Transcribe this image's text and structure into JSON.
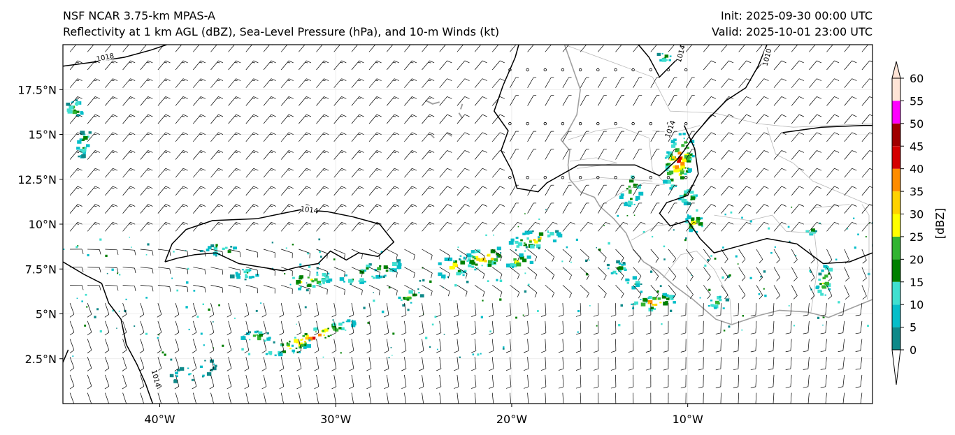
{
  "titles": {
    "left_line1": "NSF NCAR 3.75-km MPAS-A",
    "left_line2": "Reflectivity at 1 km AGL (dBZ), Sea-Level Pressure (hPa), and 10-m Winds (kt)",
    "right_line1": "Init: 2025-09-30 00:00 UTC",
    "right_line2": "Valid: 2025-10-01 23:00 UTC"
  },
  "map": {
    "lon_range": [
      -45.5,
      0.5
    ],
    "lat_range": [
      0,
      20
    ],
    "lon_ticks": [
      {
        "value": -40,
        "label": "40°W"
      },
      {
        "value": -30,
        "label": "30°W"
      },
      {
        "value": -20,
        "label": "20°W"
      },
      {
        "value": -10,
        "label": "10°W"
      }
    ],
    "lat_ticks": [
      {
        "value": 2.5,
        "label": "2.5°N"
      },
      {
        "value": 5,
        "label": "5°N"
      },
      {
        "value": 7.5,
        "label": "7.5°N"
      },
      {
        "value": 10,
        "label": "10°N"
      },
      {
        "value": 12.5,
        "label": "12.5°N"
      },
      {
        "value": 15,
        "label": "15°N"
      },
      {
        "value": 17.5,
        "label": "17.5°N"
      }
    ],
    "isobar_labels": [
      {
        "text": "1018",
        "lon": -43.1,
        "lat": 19.3,
        "angle": -12
      },
      {
        "text": "1014",
        "lon": -31.5,
        "lat": 10.8,
        "angle": 8
      },
      {
        "text": "1014",
        "lon": -10.4,
        "lat": 19.5,
        "angle": -75
      },
      {
        "text": "1010",
        "lon": -5.5,
        "lat": 19.3,
        "angle": -75
      },
      {
        "text": "1014",
        "lon": -11.0,
        "lat": 15.3,
        "angle": -70
      },
      {
        "text": "1014",
        "lon": -40.2,
        "lat": 1.4,
        "angle": 75
      }
    ],
    "isobars": [
      [
        [
          -45.5,
          18.8
        ],
        [
          -44,
          19.0
        ],
        [
          -42,
          19.3
        ],
        [
          -40.5,
          19.7
        ],
        [
          -39.6,
          20
        ]
      ],
      [
        [
          -39.7,
          7.9
        ],
        [
          -39.3,
          8.9
        ],
        [
          -38.5,
          9.7
        ],
        [
          -37,
          10.2
        ],
        [
          -34.5,
          10.3
        ],
        [
          -32,
          10.8
        ],
        [
          -30.5,
          10.7
        ],
        [
          -29,
          10.4
        ],
        [
          -27.5,
          10.0
        ],
        [
          -26.7,
          9.0
        ],
        [
          -27.6,
          8.2
        ],
        [
          -28.7,
          8.4
        ],
        [
          -29.4,
          8.0
        ],
        [
          -30.3,
          8.5
        ],
        [
          -31.0,
          7.8
        ],
        [
          -32.2,
          7.6
        ],
        [
          -33.0,
          7.4
        ],
        [
          -34.2,
          7.6
        ],
        [
          -35.5,
          7.8
        ],
        [
          -36.8,
          8.4
        ],
        [
          -38.0,
          8.3
        ],
        [
          -39.0,
          8.1
        ],
        [
          -39.7,
          7.9
        ]
      ],
      [
        [
          -45.5,
          7.9
        ],
        [
          -44.3,
          7.2
        ],
        [
          -43.3,
          6.7
        ],
        [
          -42.9,
          5.6
        ],
        [
          -42.2,
          4.7
        ],
        [
          -41.9,
          3.3
        ],
        [
          -41.3,
          2.2
        ],
        [
          -40.8,
          1.1
        ],
        [
          -40.4,
          0
        ]
      ],
      [
        [
          -5.5,
          20
        ],
        [
          -6.0,
          18.8
        ],
        [
          -6.7,
          17.6
        ],
        [
          -7.8,
          16.9
        ],
        [
          -8.8,
          15.9
        ],
        [
          -9.6,
          15.0
        ],
        [
          -10.2,
          14.1
        ],
        [
          -10.6,
          13.6
        ],
        [
          -11.6,
          12.7
        ],
        [
          -13,
          13.3
        ],
        [
          -14.6,
          13.3
        ],
        [
          -16.2,
          13.3
        ],
        [
          -18,
          12.3
        ],
        [
          -18.5,
          11.8
        ],
        [
          -19.7,
          12.0
        ],
        [
          -20.0,
          13.0
        ],
        [
          -20.6,
          14.1
        ],
        [
          -20.2,
          15.2
        ],
        [
          -21.0,
          16.3
        ],
        [
          -20.5,
          17.7
        ],
        [
          -19.8,
          19.3
        ],
        [
          -19.6,
          20
        ]
      ],
      [
        [
          -45.5,
          2.3
        ],
        [
          -45.2,
          3.0
        ]
      ],
      [
        [
          -10.4,
          20
        ],
        [
          -10.6,
          19.2
        ],
        [
          -11.6,
          18.2
        ],
        [
          -12.2,
          19.3
        ],
        [
          -12.8,
          20
        ]
      ],
      [
        [
          -10.2,
          15.5
        ],
        [
          -9.6,
          14.2
        ],
        [
          -9.4,
          12.8
        ],
        [
          -10.0,
          11.6
        ],
        [
          -11.2,
          11.2
        ],
        [
          -11.6,
          10.6
        ],
        [
          -11.0,
          9.9
        ],
        [
          -10.0,
          10.2
        ],
        [
          -9.3,
          9.2
        ],
        [
          -8.5,
          8.4
        ],
        [
          -7,
          8.8
        ],
        [
          -5.5,
          9.2
        ],
        [
          -3.8,
          8.9
        ],
        [
          -2.3,
          7.8
        ],
        [
          -0.8,
          7.9
        ],
        [
          0.5,
          8.4
        ]
      ],
      [
        [
          -4.6,
          15.1
        ],
        [
          -2.4,
          15.4
        ],
        [
          0,
          15.5
        ],
        [
          0.5,
          15.5
        ]
      ]
    ],
    "coastline": [
      [
        [
          -17.0,
          20
        ],
        [
          -16.6,
          18.9
        ],
        [
          -16.1,
          17.5
        ],
        [
          -16.3,
          16.1
        ],
        [
          -16.8,
          15.2
        ],
        [
          -17.2,
          14.7
        ],
        [
          -16.7,
          14.1
        ],
        [
          -16.8,
          13.3
        ],
        [
          -16.7,
          12.5
        ],
        [
          -16.1,
          11.8
        ],
        [
          -15.3,
          11.5
        ],
        [
          -15.0,
          11.0
        ],
        [
          -14.2,
          10.3
        ],
        [
          -13.5,
          9.5
        ],
        [
          -13.1,
          8.6
        ],
        [
          -12.5,
          7.9
        ],
        [
          -11.7,
          7.4
        ],
        [
          -10.8,
          6.6
        ],
        [
          -9.7,
          5.8
        ],
        [
          -8.4,
          4.7
        ],
        [
          -7.5,
          4.4
        ],
        [
          -6.0,
          4.9
        ],
        [
          -4.8,
          5.2
        ],
        [
          -3.2,
          5.1
        ],
        [
          -2.0,
          4.8
        ],
        [
          -1.0,
          5.2
        ],
        [
          0.5,
          5.8
        ]
      ]
    ],
    "islands": [
      [
        [
          -24.9,
          16.9
        ],
        [
          -24.5,
          16.7
        ],
        [
          -24.1,
          16.8
        ]
      ],
      [
        [
          -23.0,
          16.2
        ],
        [
          -22.8,
          15.9
        ]
      ],
      [
        [
          -23.7,
          15.1
        ],
        [
          -23.4,
          14.9
        ]
      ],
      [
        [
          -24.6,
          15.0
        ],
        [
          -24.4,
          14.8
        ]
      ],
      [
        [
          -22.8,
          16.7
        ],
        [
          -22.9,
          16.4
        ]
      ]
    ],
    "borders": [
      [
        [
          -17.0,
          20
        ],
        [
          -12.0,
          18.2
        ],
        [
          -11.0,
          16.3
        ],
        [
          -8.5,
          16.2
        ],
        [
          -6,
          15.6
        ],
        [
          -4,
          15.4
        ],
        [
          0.5,
          15.6
        ]
      ],
      [
        [
          -16.8,
          14.7
        ],
        [
          -15.2,
          15.2
        ],
        [
          -13.8,
          15.4
        ],
        [
          -12.2,
          14.8
        ],
        [
          -12.0,
          13.0
        ],
        [
          -11.4,
          12.4
        ]
      ],
      [
        [
          -16.7,
          13.5
        ],
        [
          -15.2,
          13.7
        ],
        [
          -14.0,
          13.4
        ],
        [
          -16.3,
          13.1
        ]
      ],
      [
        [
          -16.8,
          12.3
        ],
        [
          -15,
          12.6
        ],
        [
          -13.7,
          12.5
        ],
        [
          -12.0,
          12.4
        ]
      ],
      [
        [
          -15.0,
          11.0
        ],
        [
          -13.7,
          11.8
        ],
        [
          -12.5,
          12.3
        ],
        [
          -11.3,
          12.2
        ]
      ],
      [
        [
          -13.2,
          9.1
        ],
        [
          -11.8,
          9.9
        ],
        [
          -11.0,
          10.0
        ]
      ],
      [
        [
          -11.4,
          7.0
        ],
        [
          -10.4,
          8.3
        ],
        [
          -9.5,
          8.5
        ],
        [
          -8.5,
          7.5
        ],
        [
          -7.6,
          5.8
        ],
        [
          -7.5,
          4.4
        ]
      ],
      [
        [
          -8.5,
          10.5
        ],
        [
          -6.5,
          10.2
        ],
        [
          -5.2,
          10.5
        ],
        [
          -4.4,
          9.6
        ],
        [
          -2.8,
          9.5
        ],
        [
          -2.6,
          7.7
        ],
        [
          -3.0,
          5.1
        ]
      ],
      [
        [
          -5.5,
          15.4
        ],
        [
          -5.0,
          13.9
        ],
        [
          -4.0,
          13.4
        ],
        [
          -2.9,
          12.4
        ],
        [
          0,
          11.2
        ],
        [
          0.5,
          11.0
        ]
      ],
      [
        [
          -2.9,
          10.9
        ],
        [
          -0.8,
          11.1
        ]
      ],
      [
        [
          -0.1,
          11.1
        ],
        [
          0.3,
          10.5
        ],
        [
          0.3,
          6.5
        ],
        [
          0.2,
          5.8
        ]
      ],
      [
        [
          -12.0,
          15.2
        ],
        [
          -10.8,
          15.1
        ],
        [
          -9.3,
          15.5
        ]
      ]
    ],
    "reflectivity_cells": [
      {
        "lon": -31.5,
        "lat": 3.6,
        "sx": 2.8,
        "sy": 0.45,
        "rot": -20,
        "peak": 48,
        "n": 70
      },
      {
        "lon": -34.5,
        "lat": 3.7,
        "sx": 0.9,
        "sy": 0.3,
        "rot": 0,
        "peak": 35,
        "n": 20
      },
      {
        "lon": -31.6,
        "lat": 6.8,
        "sx": 1.5,
        "sy": 0.5,
        "rot": -10,
        "peak": 38,
        "n": 30
      },
      {
        "lon": -28.0,
        "lat": 7.3,
        "sx": 2.0,
        "sy": 0.45,
        "rot": -15,
        "peak": 35,
        "n": 35
      },
      {
        "lon": -25.8,
        "lat": 5.9,
        "sx": 0.8,
        "sy": 0.4,
        "rot": -20,
        "peak": 32,
        "n": 15
      },
      {
        "lon": -23.2,
        "lat": 7.6,
        "sx": 1.2,
        "sy": 0.6,
        "rot": -10,
        "peak": 36,
        "n": 30
      },
      {
        "lon": -21.5,
        "lat": 8.1,
        "sx": 1.2,
        "sy": 0.6,
        "rot": -15,
        "peak": 48,
        "n": 40
      },
      {
        "lon": -18.7,
        "lat": 9.1,
        "sx": 1.5,
        "sy": 0.5,
        "rot": -12,
        "peak": 38,
        "n": 35
      },
      {
        "lon": -19.6,
        "lat": 7.9,
        "sx": 0.8,
        "sy": 0.4,
        "rot": 0,
        "peak": 35,
        "n": 15
      },
      {
        "lon": -11.9,
        "lat": 5.6,
        "sx": 1.4,
        "sy": 0.4,
        "rot": -10,
        "peak": 47,
        "n": 35
      },
      {
        "lon": -10.5,
        "lat": 13.5,
        "sx": 0.8,
        "sy": 1.6,
        "rot": 15,
        "peak": 52,
        "n": 90
      },
      {
        "lon": -9.6,
        "lat": 10.0,
        "sx": 0.6,
        "sy": 0.5,
        "rot": 0,
        "peak": 42,
        "n": 25
      },
      {
        "lon": -10.0,
        "lat": 11.5,
        "sx": 0.5,
        "sy": 0.4,
        "rot": 0,
        "peak": 38,
        "n": 18
      },
      {
        "lon": -13.2,
        "lat": 11.9,
        "sx": 0.6,
        "sy": 1.0,
        "rot": 10,
        "peak": 36,
        "n": 25
      },
      {
        "lon": -44.8,
        "lat": 16.4,
        "sx": 0.5,
        "sy": 0.5,
        "rot": 0,
        "peak": 30,
        "n": 20
      },
      {
        "lon": -44.3,
        "lat": 14.5,
        "sx": 0.3,
        "sy": 0.9,
        "rot": 15,
        "peak": 28,
        "n": 22
      },
      {
        "lon": -11.3,
        "lat": 19.3,
        "sx": 0.4,
        "sy": 0.3,
        "rot": 0,
        "peak": 28,
        "n": 10
      },
      {
        "lon": -2.2,
        "lat": 6.8,
        "sx": 0.4,
        "sy": 1.0,
        "rot": 15,
        "peak": 35,
        "n": 25
      },
      {
        "lon": -14.0,
        "lat": 7.5,
        "sx": 0.7,
        "sy": 0.4,
        "rot": 0,
        "peak": 25,
        "n": 15
      },
      {
        "lon": -13.1,
        "lat": 6.7,
        "sx": 0.5,
        "sy": 0.3,
        "rot": 0,
        "peak": 28,
        "n": 10
      },
      {
        "lon": -8.3,
        "lat": 5.6,
        "sx": 0.6,
        "sy": 0.4,
        "rot": 0,
        "peak": 28,
        "n": 12
      },
      {
        "lon": -3.0,
        "lat": 9.6,
        "sx": 0.3,
        "sy": 0.2,
        "rot": 0,
        "peak": 30,
        "n": 6
      },
      {
        "lon": -36.5,
        "lat": 8.5,
        "sx": 1.2,
        "sy": 0.3,
        "rot": 0,
        "peak": 25,
        "n": 18
      },
      {
        "lon": -35.0,
        "lat": 7.2,
        "sx": 1.0,
        "sy": 0.3,
        "rot": 0,
        "peak": 22,
        "n": 15
      },
      {
        "lon": -38.0,
        "lat": 1.8,
        "sx": 1.5,
        "sy": 0.5,
        "rot": -20,
        "peak": 18,
        "n": 22
      }
    ],
    "reflectivity_colors": [
      "#ffffff",
      "#0f8989",
      "#06bec9",
      "#40e0d0",
      "#008000",
      "#32b432",
      "#ffff00",
      "#ffd200",
      "#ff8c00",
      "#d40000",
      "#a00000",
      "#ff00ff",
      "#ffe4d6"
    ]
  },
  "colorbar": {
    "unit_label": "[dBZ]",
    "ticks": [
      "0",
      "5",
      "10",
      "15",
      "20",
      "25",
      "30",
      "35",
      "40",
      "45",
      "50",
      "55",
      "60"
    ],
    "levels": [
      {
        "from": 0,
        "to": 5,
        "color": "#0f8989"
      },
      {
        "from": 5,
        "to": 10,
        "color": "#06bec9"
      },
      {
        "from": 10,
        "to": 15,
        "color": "#40e0d0"
      },
      {
        "from": 15,
        "to": 20,
        "color": "#008000"
      },
      {
        "from": 20,
        "to": 25,
        "color": "#32b432"
      },
      {
        "from": 25,
        "to": 30,
        "color": "#ffff00"
      },
      {
        "from": 30,
        "to": 35,
        "color": "#ffd200"
      },
      {
        "from": 35,
        "to": 40,
        "color": "#ff8c00"
      },
      {
        "from": 40,
        "to": 45,
        "color": "#d40000"
      },
      {
        "from": 45,
        "to": 50,
        "color": "#a00000"
      },
      {
        "from": 50,
        "to": 55,
        "color": "#ff00ff"
      },
      {
        "from": 55,
        "to": 60,
        "color": "#ffe4d6"
      }
    ],
    "under_color": "#ffffff",
    "over_color": "#ffe4d6"
  }
}
